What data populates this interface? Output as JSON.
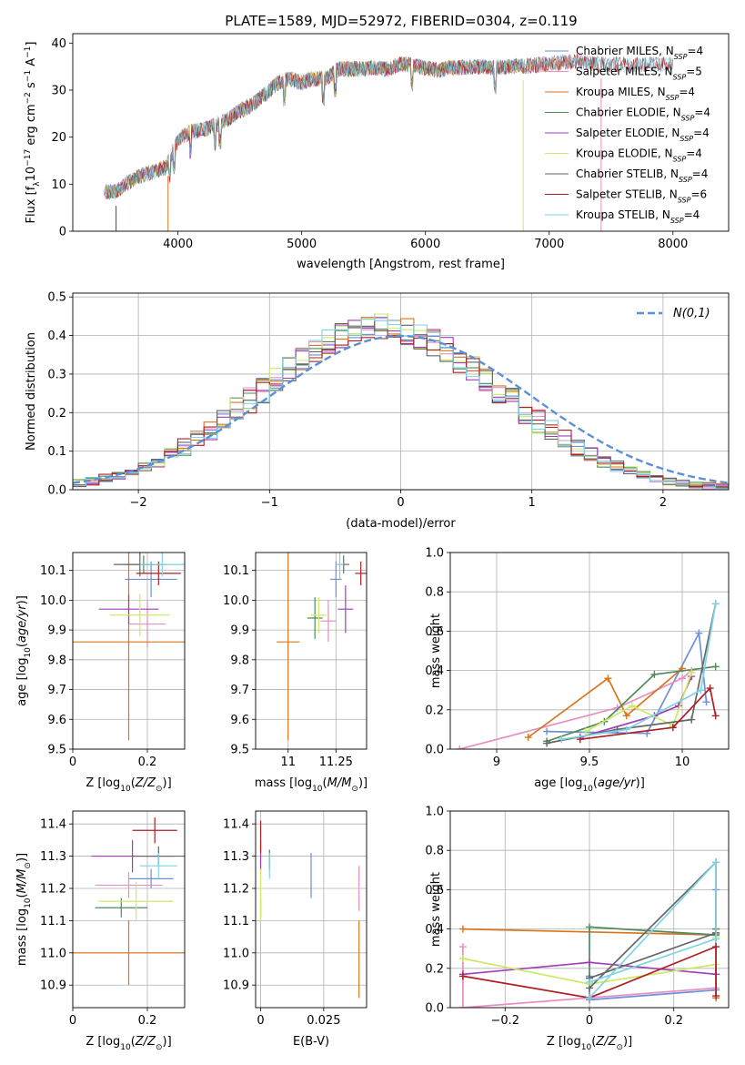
{
  "figure": {
    "title": "PLATE=1589, MJD=52972, FIBERID=0304, z=0.119"
  },
  "colors": [
    "#6f8fd8",
    "#e68fc3",
    "#d8761e",
    "#4f8a5a",
    "#a23db8",
    "#ccea68",
    "#666666",
    "#ae1f25",
    "#7fd3e4"
  ],
  "chart_data": [
    {
      "id": "spectrum",
      "type": "line",
      "xlabel": "wavelength [Angstrom, rest frame]",
      "ylabel": "Flux [f_λ10^-17 erg cm^-2 s^-1 A^-1]",
      "xlim": [
        3150,
        8450
      ],
      "ylim": [
        0,
        42
      ],
      "xticks": [
        4000,
        5000,
        6000,
        7000,
        8000
      ],
      "yticks": [
        0,
        10,
        20,
        30,
        40
      ],
      "x": [
        3400,
        3500,
        3600,
        3700,
        3800,
        3900,
        4000,
        4100,
        4200,
        4300,
        4400,
        4500,
        4600,
        4700,
        4800,
        4900,
        5000,
        5100,
        5200,
        5300,
        5400,
        5500,
        5600,
        5700,
        5800,
        5900,
        6000,
        6100,
        6200,
        6300,
        6400,
        6500,
        6600,
        6700,
        6800,
        6900,
        7000,
        7100,
        7200,
        7300,
        7400
      ],
      "y": [
        8.3,
        8.4,
        10.4,
        11.8,
        12.7,
        13.6,
        19.4,
        21.1,
        21.6,
        22.6,
        23.7,
        25.6,
        26.9,
        29.0,
        31.4,
        32.5,
        31.6,
        32.4,
        32.5,
        34.5,
        34.5,
        34.5,
        34.8,
        34.4,
        35.6,
        35.3,
        34.7,
        34.2,
        34.8,
        34.8,
        35.1,
        34.8,
        34.8,
        35.0,
        35.1,
        35.3,
        35.6,
        35.9,
        36.1,
        35.9,
        35.5
      ],
      "series": [
        {
          "name": "Chabrier MILES, N_SSP=4",
          "end": 7400
        },
        {
          "name": "Salpeter MILES, N_SSP=5",
          "end": 7400
        },
        {
          "name": "Kroupa MILES, N_SSP=4",
          "end": 7400
        },
        {
          "name": "Chabrier ELODIE, N_SSP=4",
          "end": 6800
        },
        {
          "name": "Salpeter ELODIE, N_SSP=4",
          "end": 6800
        },
        {
          "name": "Kroupa ELODIE, N_SSP=4",
          "end": 6800
        },
        {
          "name": "Chabrier STELIB, N_SSP=4",
          "end": 8000
        },
        {
          "name": "Salpeter STELIB, N_SSP=6",
          "end": 8000
        },
        {
          "name": "Kroupa STELIB, N_SSP=4",
          "end": 8000
        }
      ],
      "legend_position": "top-right"
    },
    {
      "id": "residuals",
      "type": "line",
      "xlabel": "(data-model)/error",
      "ylabel": "Normed distribution",
      "xlim": [
        -2.5,
        2.5
      ],
      "ylim": [
        0,
        0.51
      ],
      "xticks": [
        -2,
        -1,
        0,
        1,
        2
      ],
      "yticks": [
        0.0,
        0.1,
        0.2,
        0.3,
        0.4,
        0.5
      ],
      "gaussian_label": "N(0,1)",
      "legend_position": "top-right",
      "bin_width": 0.1,
      "x_start": -2.5,
      "base_values": [
        0.017,
        0.022,
        0.029,
        0.037,
        0.047,
        0.06,
        0.074,
        0.091,
        0.11,
        0.131,
        0.154,
        0.179,
        0.205,
        0.232,
        0.26,
        0.287,
        0.314,
        0.339,
        0.362,
        0.382,
        0.398,
        0.41,
        0.418,
        0.421,
        0.418,
        0.41,
        0.398,
        0.382,
        0.362,
        0.339,
        0.314,
        0.287,
        0.26,
        0.232,
        0.205,
        0.179,
        0.154,
        0.131,
        0.11,
        0.091,
        0.074,
        0.06,
        0.047,
        0.037,
        0.029,
        0.022,
        0.017,
        0.013,
        0.01,
        0.008
      ]
    },
    {
      "id": "age_vs_z",
      "type": "scatter",
      "xlabel": "Z [log10(Z/Z⊙)]",
      "ylabel": "age [log10(age/yr)]",
      "xlim": [
        0.0,
        0.3
      ],
      "ylim": [
        9.5,
        10.16
      ],
      "xticks": [
        0.0,
        0.2
      ],
      "yticks": [
        9.5,
        9.6,
        9.7,
        9.8,
        9.9,
        10.0,
        10.1
      ],
      "points": [
        {
          "x": 0.21,
          "y": 10.07,
          "xerr": 0.07,
          "yerr": 0.06
        },
        {
          "x": 0.2,
          "y": 9.92,
          "xerr": 0.05,
          "yerr": 0.08
        },
        {
          "x": 0.15,
          "y": 9.86,
          "xerr": 0.15,
          "yerr": 0.33
        },
        {
          "x": 0.19,
          "y": 10.12,
          "xerr": 0.05,
          "yerr": 0.03
        },
        {
          "x": 0.15,
          "y": 9.97,
          "xerr": 0.08,
          "yerr": 0.05
        },
        {
          "x": 0.18,
          "y": 9.95,
          "xerr": 0.08,
          "yerr": 0.07
        },
        {
          "x": 0.18,
          "y": 10.12,
          "xerr": 0.07,
          "yerr": 0.04
        },
        {
          "x": 0.23,
          "y": 10.09,
          "xerr": 0.06,
          "yerr": 0.04
        },
        {
          "x": 0.24,
          "y": 10.12,
          "xerr": 0.06,
          "yerr": 0.04
        }
      ]
    },
    {
      "id": "age_vs_mass",
      "type": "scatter",
      "xlabel": "mass [log10(M/M⊙)]",
      "ylabel": "",
      "xlim": [
        10.83,
        11.41
      ],
      "ylim": [
        9.5,
        10.16
      ],
      "xticks": [
        11.0,
        11.25
      ],
      "yticks": [
        9.5,
        9.6,
        9.7,
        9.8,
        9.9,
        10.0,
        10.1
      ],
      "points": [
        {
          "x": 11.25,
          "y": 10.07,
          "xerr": 0.03,
          "yerr": 0.06
        },
        {
          "x": 11.21,
          "y": 9.93,
          "xerr": 0.04,
          "yerr": 0.07
        },
        {
          "x": 11.0,
          "y": 9.86,
          "xerr": 0.06,
          "yerr": 0.33
        },
        {
          "x": 11.14,
          "y": 9.94,
          "xerr": 0.04,
          "yerr": 0.07
        },
        {
          "x": 11.3,
          "y": 9.97,
          "xerr": 0.04,
          "yerr": 0.08
        },
        {
          "x": 11.16,
          "y": 9.95,
          "xerr": 0.04,
          "yerr": 0.06
        },
        {
          "x": 11.29,
          "y": 10.12,
          "xerr": 0.03,
          "yerr": 0.03
        },
        {
          "x": 11.38,
          "y": 10.09,
          "xerr": 0.03,
          "yerr": 0.04
        },
        {
          "x": 11.27,
          "y": 10.12,
          "xerr": 0.02,
          "yerr": 0.05
        }
      ]
    },
    {
      "id": "mass_weight_age",
      "type": "line",
      "xlabel": "age [log10(age/yr)]",
      "ylabel": "mass weight",
      "xlim": [
        8.75,
        10.25
      ],
      "ylim": [
        0,
        1.0
      ],
      "xticks": [
        9.0,
        9.5,
        10.0
      ],
      "yticks": [
        0.0,
        0.2,
        0.4,
        0.6,
        0.8,
        1.0
      ],
      "series": [
        {
          "x": [
            9.27,
            9.81,
            10.09,
            10.13
          ],
          "y": [
            0.09,
            0.08,
            0.59,
            0.24
          ]
        },
        {
          "x": [
            8.8,
            9.65,
            10.0,
            10.05
          ],
          "y": [
            0.0,
            0.21,
            0.36,
            0.4
          ]
        },
        {
          "x": [
            9.17,
            9.6,
            9.7,
            10.0
          ],
          "y": [
            0.06,
            0.36,
            0.17,
            0.41
          ]
        },
        {
          "x": [
            9.27,
            9.58,
            9.85,
            10.18
          ],
          "y": [
            0.04,
            0.14,
            0.38,
            0.42
          ]
        },
        {
          "x": [
            9.45,
            9.85,
            9.98,
            10.05
          ],
          "y": [
            0.06,
            0.17,
            0.22,
            0.37
          ]
        },
        {
          "x": [
            9.48,
            9.73,
            9.95,
            10.05
          ],
          "y": [
            0.09,
            0.22,
            0.12,
            0.39
          ]
        },
        {
          "x": [
            9.27,
            9.65,
            10.05,
            10.18
          ],
          "y": [
            0.03,
            0.1,
            0.15,
            0.74
          ]
        },
        {
          "x": [
            9.45,
            9.95,
            10.15,
            10.18
          ],
          "y": [
            0.05,
            0.11,
            0.31,
            0.17
          ]
        },
        {
          "x": [
            9.35,
            9.7,
            10.1,
            10.18
          ],
          "y": [
            0.05,
            0.1,
            0.3,
            0.74
          ]
        }
      ]
    },
    {
      "id": "mass_vs_z",
      "type": "scatter",
      "xlabel": "Z [log10(Z/Z⊙)]",
      "ylabel": "mass [log10(M/M⊙)]",
      "xlim": [
        0.0,
        0.3
      ],
      "ylim": [
        10.83,
        11.44
      ],
      "xticks": [
        0.0,
        0.2
      ],
      "yticks": [
        10.9,
        11.0,
        11.1,
        11.2,
        11.3,
        11.4
      ],
      "points": [
        {
          "x": 0.21,
          "y": 11.23,
          "xerr": 0.06,
          "yerr": 0.03
        },
        {
          "x": 0.15,
          "y": 11.21,
          "xerr": 0.09,
          "yerr": 0.04
        },
        {
          "x": 0.15,
          "y": 11.0,
          "xerr": 0.15,
          "yerr": 0.1
        },
        {
          "x": 0.13,
          "y": 11.14,
          "xerr": 0.07,
          "yerr": 0.03
        },
        {
          "x": 0.16,
          "y": 11.3,
          "xerr": 0.11,
          "yerr": 0.05
        },
        {
          "x": 0.17,
          "y": 11.16,
          "xerr": 0.1,
          "yerr": 0.06
        },
        {
          "x": 0.23,
          "y": 11.3,
          "xerr": 0.07,
          "yerr": 0.03
        },
        {
          "x": 0.22,
          "y": 11.38,
          "xerr": 0.06,
          "yerr": 0.04
        },
        {
          "x": 0.23,
          "y": 11.27,
          "xerr": 0.05,
          "yerr": 0.04
        }
      ]
    },
    {
      "id": "mass_vs_ebv",
      "type": "scatter",
      "xlabel": "E(B-V)",
      "ylabel": "",
      "xlim": [
        -0.002,
        0.042
      ],
      "ylim": [
        10.83,
        11.44
      ],
      "xticks": [
        0.0,
        0.025
      ],
      "yticks": [
        10.9,
        11.0,
        11.1,
        11.2,
        11.3,
        11.4
      ],
      "points": [
        {
          "x": 0.02,
          "y": 11.24,
          "xerr": 0,
          "yerr": 0.07
        },
        {
          "x": 0.039,
          "y": 11.2,
          "xerr": 0,
          "yerr": 0.07
        },
        {
          "x": 0.039,
          "y": 10.98,
          "xerr": 0,
          "yerr": 0.12
        },
        {
          "x": 0.0,
          "y": 11.14,
          "xerr": 0,
          "yerr": 0.03
        },
        {
          "x": 0.0,
          "y": 11.3,
          "xerr": 0,
          "yerr": 0.05
        },
        {
          "x": 0.0,
          "y": 11.18,
          "xerr": 0,
          "yerr": 0.08
        },
        {
          "x": 0.0035,
          "y": 11.29,
          "xerr": 0,
          "yerr": 0.03
        },
        {
          "x": 0.0,
          "y": 11.36,
          "xerr": 0,
          "yerr": 0.05
        },
        {
          "x": 0.0035,
          "y": 11.27,
          "xerr": 0,
          "yerr": 0.04
        }
      ]
    },
    {
      "id": "mass_weight_z",
      "type": "line",
      "xlabel": "Z [log10(Z/Z⊙)]",
      "ylabel": "mass weight",
      "xlim": [
        -0.33,
        0.33
      ],
      "ylim": [
        0,
        1.0
      ],
      "xticks": [
        -0.2,
        0.0,
        0.2
      ],
      "yticks": [
        0.0,
        0.2,
        0.4,
        0.6,
        0.8,
        1.0
      ],
      "series": [
        {
          "x": [
            0.0,
            0.0,
            0.3,
            0.3
          ],
          "y": [
            0.16,
            0.04,
            0.09,
            0.6
          ]
        },
        {
          "x": [
            -0.3,
            -0.3,
            0.0,
            0.3
          ],
          "y": [
            0.31,
            0.0,
            0.05,
            0.1
          ]
        },
        {
          "x": [
            -0.3,
            0.3,
            0.3,
            0.3
          ],
          "y": [
            0.4,
            0.37,
            0.05,
            0.4
          ]
        },
        {
          "x": [
            0.0,
            0.0,
            0.3,
            0.3
          ],
          "y": [
            0.15,
            0.41,
            0.37,
            0.4
          ]
        },
        {
          "x": [
            -0.3,
            0.0,
            0.3,
            0.3
          ],
          "y": [
            0.17,
            0.23,
            0.17,
            0.38
          ]
        },
        {
          "x": [
            -0.3,
            0.0,
            0.3,
            0.3
          ],
          "y": [
            0.25,
            0.12,
            0.22,
            0.36
          ]
        },
        {
          "x": [
            0.0,
            0.3,
            0.3,
            0.0
          ],
          "y": [
            0.1,
            0.74,
            0.38,
            0.15
          ]
        },
        {
          "x": [
            -0.3,
            0.0,
            0.3,
            0.3
          ],
          "y": [
            0.16,
            0.05,
            0.31,
            0.06
          ]
        },
        {
          "x": [
            0.0,
            0.3,
            0.3,
            0.0
          ],
          "y": [
            0.05,
            0.74,
            0.35,
            0.13
          ]
        }
      ]
    }
  ]
}
